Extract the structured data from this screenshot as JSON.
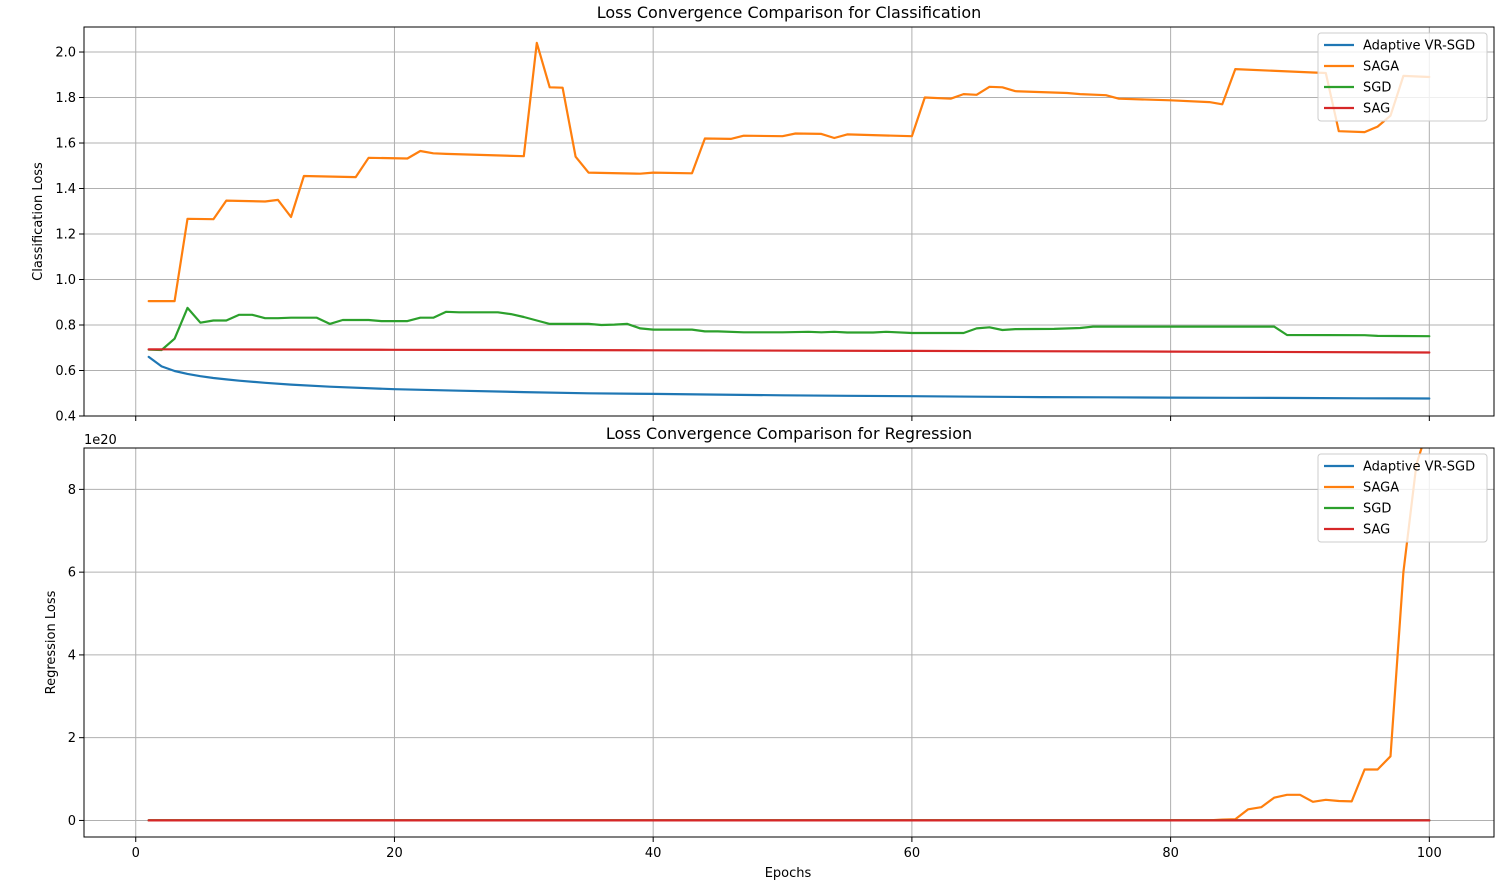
{
  "figure": {
    "xlabel": "Epochs"
  },
  "colors": {
    "Adaptive VR-SGD": "#1f77b4",
    "SAGA": "#ff7f0e",
    "SGD": "#2ca02c",
    "SAG": "#d62728",
    "grid": "#b0b0b0"
  },
  "chart_data": [
    {
      "type": "line",
      "title": "Loss Convergence Comparison for Classification",
      "xlabel": "",
      "ylabel": "Classification Loss",
      "xlim": [
        -4,
        105
      ],
      "ylim": [
        0.4,
        2.11
      ],
      "xticks": [
        0,
        20,
        40,
        60,
        80,
        100
      ],
      "show_xticklabels": false,
      "yticks": [
        0.4,
        0.6,
        0.8,
        1.0,
        1.2,
        1.4,
        1.6,
        1.8,
        2.0
      ],
      "ytick_labels": [
        "0.4",
        "0.6",
        "0.8",
        "1.0",
        "1.2",
        "1.4",
        "1.6",
        "1.8",
        "2.0"
      ],
      "offset_label": "",
      "grid": true,
      "legend": "upper right",
      "series": [
        {
          "name": "Adaptive VR-SGD",
          "points": [
            [
              1,
              0.66
            ],
            [
              2,
              0.618
            ],
            [
              3,
              0.598
            ],
            [
              4,
              0.585
            ],
            [
              5,
              0.575
            ],
            [
              6,
              0.567
            ],
            [
              7,
              0.561
            ],
            [
              8,
              0.555
            ],
            [
              10,
              0.546
            ],
            [
              12,
              0.538
            ],
            [
              15,
              0.529
            ],
            [
              20,
              0.518
            ],
            [
              25,
              0.511
            ],
            [
              30,
              0.505
            ],
            [
              35,
              0.5
            ],
            [
              40,
              0.497
            ],
            [
              45,
              0.494
            ],
            [
              50,
              0.491
            ],
            [
              55,
              0.489
            ],
            [
              60,
              0.487
            ],
            [
              65,
              0.485
            ],
            [
              70,
              0.483
            ],
            [
              75,
              0.482
            ],
            [
              80,
              0.481
            ],
            [
              85,
              0.48
            ],
            [
              90,
              0.479
            ],
            [
              95,
              0.478
            ],
            [
              100,
              0.477
            ]
          ]
        },
        {
          "name": "SAGA",
          "points": [
            [
              1,
              0.905
            ],
            [
              3,
              0.905
            ],
            [
              4,
              1.267
            ],
            [
              6,
              1.265
            ],
            [
              7,
              1.347
            ],
            [
              10,
              1.343
            ],
            [
              11,
              1.35
            ],
            [
              12,
              1.275
            ],
            [
              13,
              1.455
            ],
            [
              17,
              1.45
            ],
            [
              18,
              1.535
            ],
            [
              21,
              1.532
            ],
            [
              22,
              1.565
            ],
            [
              23,
              1.555
            ],
            [
              24,
              1.552
            ],
            [
              30,
              1.542
            ],
            [
              31,
              2.04
            ],
            [
              32,
              1.845
            ],
            [
              33,
              1.843
            ],
            [
              34,
              1.54
            ],
            [
              35,
              1.47
            ],
            [
              39,
              1.465
            ],
            [
              40,
              1.47
            ],
            [
              43,
              1.467
            ],
            [
              44,
              1.62
            ],
            [
              46,
              1.618
            ],
            [
              47,
              1.632
            ],
            [
              50,
              1.63
            ],
            [
              51,
              1.642
            ],
            [
              53,
              1.64
            ],
            [
              54,
              1.622
            ],
            [
              55,
              1.638
            ],
            [
              60,
              1.63
            ],
            [
              61,
              1.8
            ],
            [
              63,
              1.795
            ],
            [
              64,
              1.815
            ],
            [
              65,
              1.812
            ],
            [
              66,
              1.847
            ],
            [
              67,
              1.845
            ],
            [
              68,
              1.828
            ],
            [
              72,
              1.82
            ],
            [
              73,
              1.815
            ],
            [
              75,
              1.81
            ],
            [
              76,
              1.795
            ],
            [
              80,
              1.788
            ],
            [
              83,
              1.78
            ],
            [
              84,
              1.77
            ],
            [
              85,
              1.925
            ],
            [
              91,
              1.91
            ],
            [
              92,
              1.908
            ],
            [
              93,
              1.652
            ],
            [
              95,
              1.648
            ],
            [
              96,
              1.672
            ],
            [
              97,
              1.72
            ],
            [
              98,
              1.895
            ],
            [
              100,
              1.89
            ]
          ]
        },
        {
          "name": "SGD",
          "points": [
            [
              1,
              0.692
            ],
            [
              2,
              0.69
            ],
            [
              3,
              0.74
            ],
            [
              4,
              0.875
            ],
            [
              5,
              0.81
            ],
            [
              6,
              0.82
            ],
            [
              7,
              0.82
            ],
            [
              8,
              0.845
            ],
            [
              9,
              0.845
            ],
            [
              10,
              0.83
            ],
            [
              11,
              0.83
            ],
            [
              12,
              0.832
            ],
            [
              14,
              0.832
            ],
            [
              15,
              0.805
            ],
            [
              16,
              0.822
            ],
            [
              18,
              0.822
            ],
            [
              19,
              0.817
            ],
            [
              21,
              0.817
            ],
            [
              22,
              0.832
            ],
            [
              23,
              0.832
            ],
            [
              24,
              0.858
            ],
            [
              25,
              0.856
            ],
            [
              28,
              0.856
            ],
            [
              29,
              0.848
            ],
            [
              30,
              0.835
            ],
            [
              31,
              0.82
            ],
            [
              32,
              0.805
            ],
            [
              35,
              0.805
            ],
            [
              36,
              0.8
            ],
            [
              37,
              0.802
            ],
            [
              38,
              0.805
            ],
            [
              39,
              0.785
            ],
            [
              40,
              0.78
            ],
            [
              43,
              0.78
            ],
            [
              44,
              0.772
            ],
            [
              45,
              0.772
            ],
            [
              47,
              0.768
            ],
            [
              50,
              0.768
            ],
            [
              52,
              0.77
            ],
            [
              53,
              0.768
            ],
            [
              54,
              0.77
            ],
            [
              55,
              0.767
            ],
            [
              57,
              0.767
            ],
            [
              58,
              0.77
            ],
            [
              60,
              0.765
            ],
            [
              64,
              0.765
            ],
            [
              65,
              0.785
            ],
            [
              66,
              0.79
            ],
            [
              67,
              0.778
            ],
            [
              68,
              0.782
            ],
            [
              71,
              0.783
            ],
            [
              73,
              0.787
            ],
            [
              74,
              0.793
            ],
            [
              88,
              0.793
            ],
            [
              89,
              0.756
            ],
            [
              95,
              0.755
            ],
            [
              96,
              0.752
            ],
            [
              100,
              0.751
            ]
          ]
        },
        {
          "name": "SAG",
          "points": [
            [
              1,
              0.693
            ],
            [
              20,
              0.691
            ],
            [
              40,
              0.689
            ],
            [
              60,
              0.686
            ],
            [
              80,
              0.683
            ],
            [
              100,
              0.679
            ]
          ]
        }
      ]
    },
    {
      "type": "line",
      "title": "Loss Convergence Comparison for Regression",
      "xlabel": "Epochs",
      "ylabel": "Regression Loss",
      "xlim": [
        -4,
        105
      ],
      "ylim": [
        -0.4,
        9.0
      ],
      "xticks": [
        0,
        20,
        40,
        60,
        80,
        100
      ],
      "show_xticklabels": true,
      "yticks": [
        0,
        2,
        4,
        6,
        8
      ],
      "ytick_labels": [
        "0",
        "2",
        "4",
        "6",
        "8"
      ],
      "offset_label": "1e20",
      "grid": true,
      "legend": "upper right",
      "series": [
        {
          "name": "Adaptive VR-SGD",
          "points": [
            [
              1,
              0
            ],
            [
              100,
              0
            ]
          ]
        },
        {
          "name": "SAGA",
          "points": [
            [
              1,
              0
            ],
            [
              83,
              0
            ],
            [
              84,
              0.02
            ],
            [
              85,
              0.03
            ],
            [
              86,
              0.27
            ],
            [
              87,
              0.32
            ],
            [
              88,
              0.55
            ],
            [
              89,
              0.62
            ],
            [
              90,
              0.62
            ],
            [
              91,
              0.45
            ],
            [
              92,
              0.5
            ],
            [
              93,
              0.47
            ],
            [
              94,
              0.46
            ],
            [
              95,
              1.23
            ],
            [
              96,
              1.23
            ],
            [
              97,
              1.55
            ],
            [
              98,
              6.0
            ],
            [
              99,
              8.6
            ],
            [
              100,
              9.6
            ]
          ]
        },
        {
          "name": "SGD",
          "points": [
            [
              1,
              0
            ],
            [
              100,
              0
            ]
          ]
        },
        {
          "name": "SAG",
          "points": [
            [
              1,
              0
            ],
            [
              100,
              0
            ]
          ]
        }
      ]
    }
  ]
}
